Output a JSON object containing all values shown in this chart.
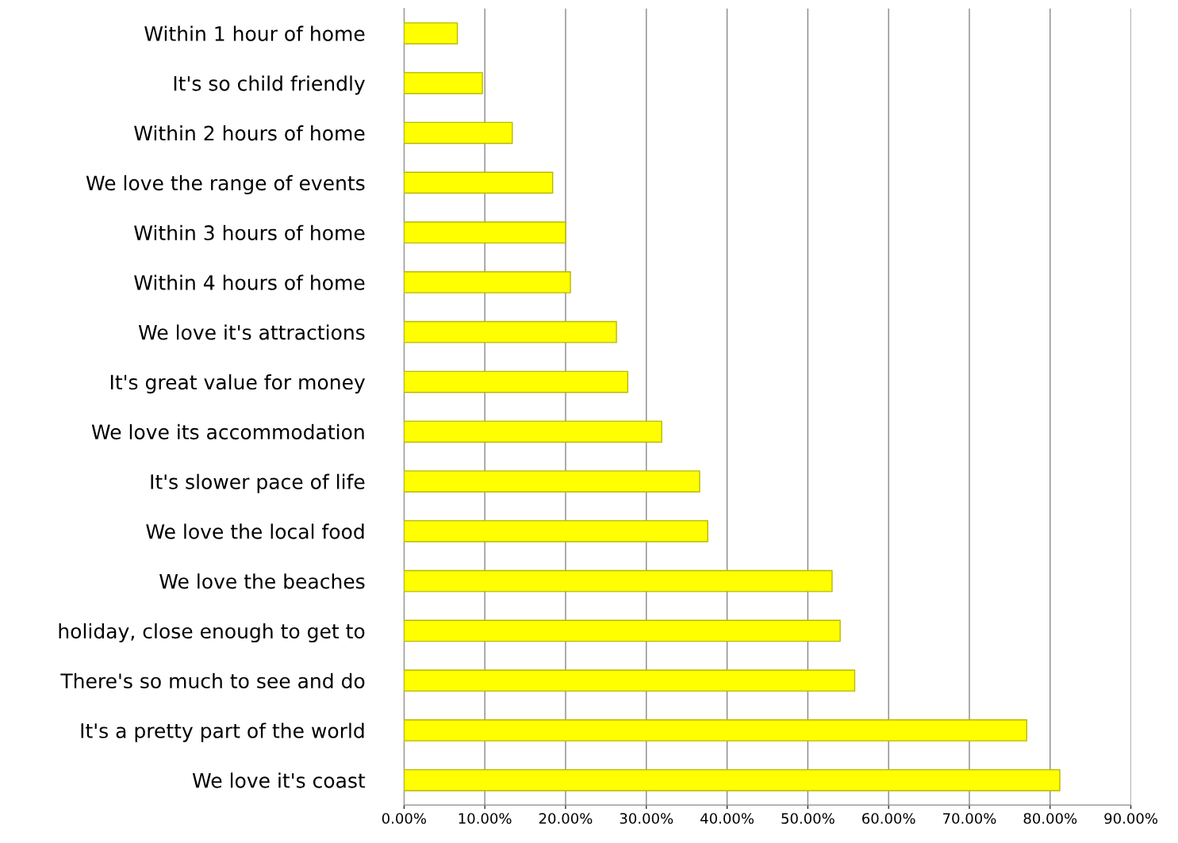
{
  "chart_data": {
    "type": "bar",
    "orientation": "horizontal",
    "categories": [
      "Within 1 hour of home",
      "It's so child friendly",
      "Within 2 hours of home",
      "We love the range of events",
      "Within 3 hours of home",
      "Within 4 hours of home",
      "We love it's attractions",
      "It's great value for money",
      "We love its accommodation",
      "It's slower pace of life",
      "We love the local food",
      "We love the beaches",
      "holiday, close enough to get to",
      "There's so much to see and do",
      "It's a pretty part of the world",
      "We love it's coast"
    ],
    "values": [
      6.6,
      9.7,
      13.4,
      18.4,
      20.0,
      20.6,
      26.3,
      27.7,
      31.9,
      36.6,
      37.6,
      53.0,
      54.0,
      55.8,
      77.1,
      81.2
    ],
    "color": "#ffff00",
    "xlim": [
      0,
      90
    ],
    "xticks": [
      {
        "value": 0,
        "label": "0.00%"
      },
      {
        "value": 10,
        "label": "10.00%"
      },
      {
        "value": 20,
        "label": "20.00%"
      },
      {
        "value": 30,
        "label": "30.00%"
      },
      {
        "value": 40,
        "label": "40.00%"
      },
      {
        "value": 50,
        "label": "50.00%"
      },
      {
        "value": 60,
        "label": "60.00%"
      },
      {
        "value": 70,
        "label": "70.00%"
      },
      {
        "value": 80,
        "label": "80.00%"
      },
      {
        "value": 90,
        "label": "90.00%"
      }
    ],
    "grid": "x",
    "legend": false
  }
}
